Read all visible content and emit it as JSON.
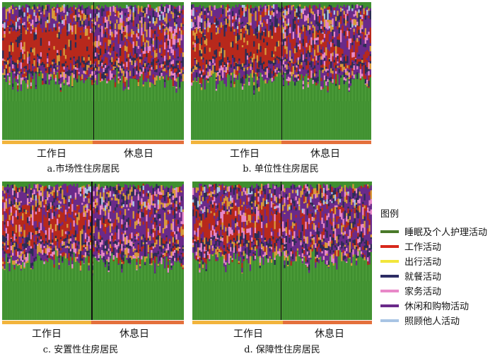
{
  "chart_data": [
    {
      "type": "heatmap",
      "panel": "a",
      "caption": "a.市场性住房居民",
      "groups": [
        "工作日",
        "休息日"
      ],
      "group_split": 0.5
    },
    {
      "type": "heatmap",
      "panel": "b",
      "caption": "b. 单位性住房居民",
      "groups": [
        "工作日",
        "休息日"
      ],
      "group_split": 0.5
    },
    {
      "type": "heatmap",
      "panel": "c",
      "caption": "c. 安置性住房居民",
      "groups": [
        "工作日",
        "休息日"
      ],
      "group_split": 0.49
    },
    {
      "type": "heatmap",
      "panel": "d",
      "caption": "d. 保障性住房居民",
      "groups": [
        "工作日",
        "休息日"
      ],
      "group_split": 0.49
    }
  ],
  "legend": {
    "title": "图例",
    "items": [
      {
        "label": "睡眠及个人护理活动",
        "color": "#4a7a2a"
      },
      {
        "label": "工作活动",
        "color": "#d8281c"
      },
      {
        "label": "出行活动",
        "color": "#f2e63c"
      },
      {
        "label": "就餐活动",
        "color": "#2c2c64"
      },
      {
        "label": "家务活动",
        "color": "#e888c8"
      },
      {
        "label": "休闲和购物活动",
        "color": "#6a2a8a"
      },
      {
        "label": "照顾他人活动",
        "color": "#a8c4e4"
      }
    ]
  },
  "colors": {
    "sleep": "#3f8f2f",
    "work": "#b8281c",
    "travel": "#d89a3a",
    "meal": "#2c2c54",
    "housework": "#e888c8",
    "leisure": "#6a2a8a",
    "care": "#a8c4e4",
    "workday_bar": "#f2b43c",
    "restday_bar": "#e4703c"
  }
}
